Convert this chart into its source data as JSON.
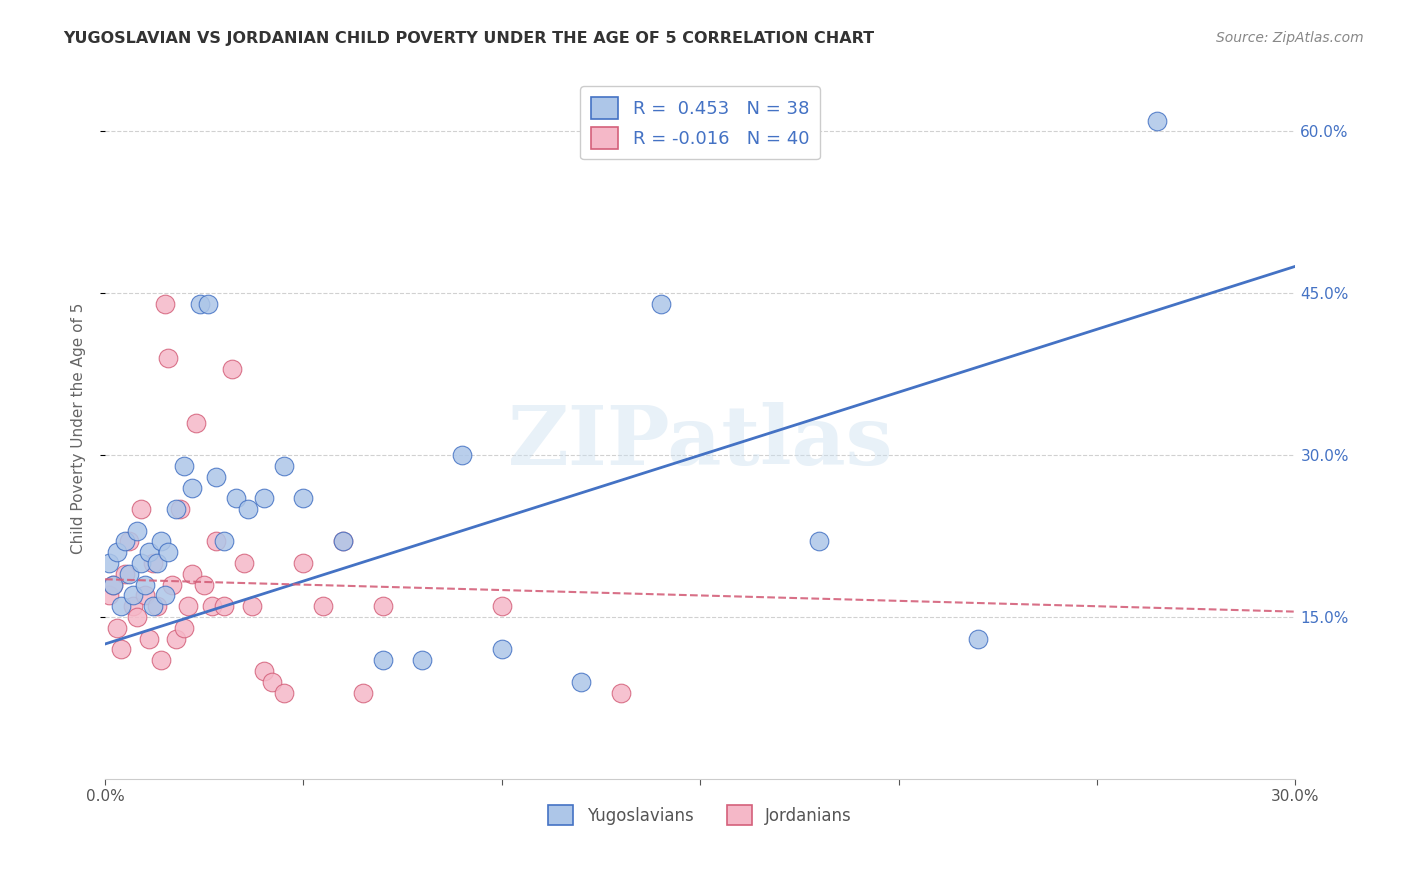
{
  "title": "YUGOSLAVIAN VS JORDANIAN CHILD POVERTY UNDER THE AGE OF 5 CORRELATION CHART",
  "source": "Source: ZipAtlas.com",
  "ylabel": "Child Poverty Under the Age of 5",
  "xlabel_yugoslav": "Yugoslavians",
  "xlabel_jordan": "Jordanians",
  "xmin": 0.0,
  "xmax": 0.3,
  "ymin": 0.0,
  "ymax": 0.65,
  "yticks": [
    0.15,
    0.3,
    0.45,
    0.6
  ],
  "xticks": [
    0.0,
    0.05,
    0.1,
    0.15,
    0.2,
    0.25,
    0.3
  ],
  "yugoslav_R": 0.453,
  "yugoslav_N": 38,
  "jordan_R": -0.016,
  "jordan_N": 40,
  "yugoslav_color": "#adc6e8",
  "jordan_color": "#f5b8c8",
  "yugoslav_line_color": "#4472c4",
  "jordan_line_color": "#d4607a",
  "watermark": "ZIPatlas",
  "yugoslav_x": [
    0.001,
    0.002,
    0.003,
    0.004,
    0.005,
    0.006,
    0.007,
    0.008,
    0.009,
    0.01,
    0.011,
    0.012,
    0.013,
    0.014,
    0.015,
    0.016,
    0.018,
    0.02,
    0.022,
    0.024,
    0.026,
    0.028,
    0.03,
    0.033,
    0.036,
    0.04,
    0.045,
    0.05,
    0.06,
    0.07,
    0.08,
    0.09,
    0.1,
    0.12,
    0.14,
    0.18,
    0.22,
    0.265
  ],
  "yugoslav_y": [
    0.2,
    0.18,
    0.21,
    0.16,
    0.22,
    0.19,
    0.17,
    0.23,
    0.2,
    0.18,
    0.21,
    0.16,
    0.2,
    0.22,
    0.17,
    0.21,
    0.25,
    0.29,
    0.27,
    0.44,
    0.44,
    0.28,
    0.22,
    0.26,
    0.25,
    0.26,
    0.29,
    0.26,
    0.22,
    0.11,
    0.11,
    0.3,
    0.12,
    0.09,
    0.44,
    0.22,
    0.13,
    0.61
  ],
  "jordan_x": [
    0.001,
    0.002,
    0.003,
    0.004,
    0.005,
    0.006,
    0.007,
    0.008,
    0.009,
    0.01,
    0.011,
    0.012,
    0.013,
    0.014,
    0.015,
    0.016,
    0.017,
    0.018,
    0.019,
    0.02,
    0.021,
    0.022,
    0.023,
    0.025,
    0.027,
    0.028,
    0.03,
    0.032,
    0.035,
    0.037,
    0.04,
    0.042,
    0.045,
    0.05,
    0.055,
    0.06,
    0.065,
    0.07,
    0.1,
    0.13
  ],
  "jordan_y": [
    0.17,
    0.18,
    0.14,
    0.12,
    0.19,
    0.22,
    0.16,
    0.15,
    0.25,
    0.17,
    0.13,
    0.2,
    0.16,
    0.11,
    0.44,
    0.39,
    0.18,
    0.13,
    0.25,
    0.14,
    0.16,
    0.19,
    0.33,
    0.18,
    0.16,
    0.22,
    0.16,
    0.38,
    0.2,
    0.16,
    0.1,
    0.09,
    0.08,
    0.2,
    0.16,
    0.22,
    0.08,
    0.16,
    0.16,
    0.08
  ],
  "yug_line_x0": 0.0,
  "yug_line_y0": 0.125,
  "yug_line_x1": 0.3,
  "yug_line_y1": 0.475,
  "jor_line_x0": 0.0,
  "jor_line_y0": 0.185,
  "jor_line_x1": 0.3,
  "jor_line_y1": 0.155
}
